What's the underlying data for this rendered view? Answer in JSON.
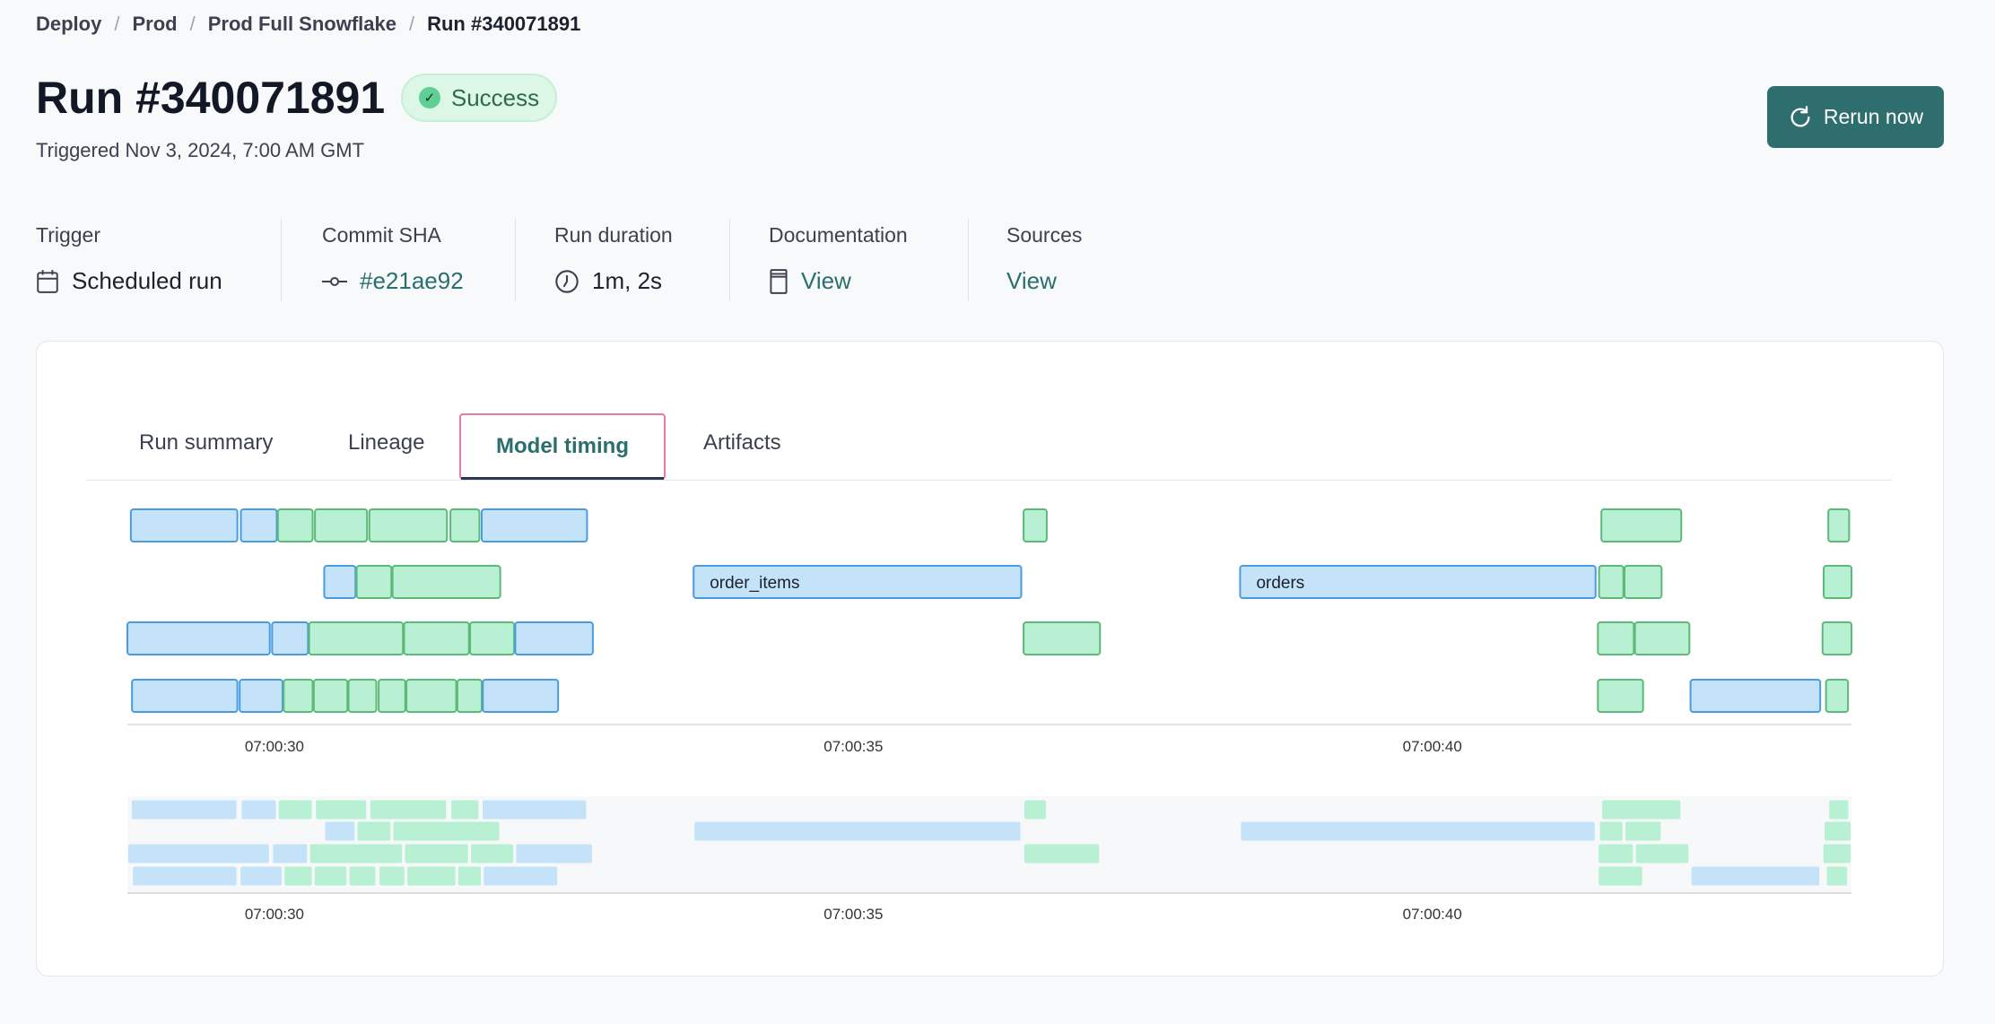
{
  "breadcrumb": [
    "Deploy",
    "Prod",
    "Prod Full Snowflake",
    "Run #340071891"
  ],
  "header": {
    "title": "Run #340071891",
    "status": "Success",
    "triggered": "Triggered Nov 3, 2024, 7:00 AM GMT",
    "rerun_label": "Rerun now"
  },
  "meta": [
    {
      "label": "Trigger",
      "value": "Scheduled run",
      "icon": "calendar-icon"
    },
    {
      "label": "Commit SHA",
      "value": "#e21ae92",
      "icon": "commit-icon"
    },
    {
      "label": "Run duration",
      "value": "1m, 2s",
      "icon": "clock-icon"
    },
    {
      "label": "Documentation",
      "value": "View",
      "icon": "book-icon"
    },
    {
      "label": "Sources",
      "value": "View"
    }
  ],
  "tabs": [
    "Run summary",
    "Lineage",
    "Model timing",
    "Artifacts"
  ],
  "active_tab": "Model timing",
  "colors": {
    "accent": "#2e6e6e",
    "blue_fill": "#c4e3f8",
    "blue_stroke": "#4a9be0",
    "green_fill": "#b7f0d2",
    "green_stroke": "#5cb978"
  },
  "chart_data": {
    "type": "gantt",
    "x_range": [
      "07:00:28.73",
      "07:00:43.62"
    ],
    "ticks": [
      "07:00:30",
      "07:00:35",
      "07:00:40"
    ],
    "rows": [
      [
        [
          "07:00:28.76",
          "07:00:29.68",
          "blue"
        ],
        [
          "07:00:29.71",
          "07:00:30.02",
          "blue"
        ],
        [
          "07:00:30.03",
          "07:00:30.33",
          "green"
        ],
        [
          "07:00:30.35",
          "07:00:30.80",
          "green"
        ],
        [
          "07:00:30.82",
          "07:00:31.49",
          "green"
        ],
        [
          "07:00:31.52",
          "07:00:31.77",
          "green"
        ],
        [
          "07:00:31.79",
          "07:00:32.70",
          "blue"
        ],
        [
          "07:00:36.47",
          "07:00:36.67",
          "green"
        ],
        [
          "07:00:41.46",
          "07:00:42.15",
          "green"
        ],
        [
          "07:00:43.42",
          "07:00:43.60",
          "green"
        ]
      ],
      [
        [
          "07:00:30.43",
          "07:00:30.70",
          "blue"
        ],
        [
          "07:00:30.71",
          "07:00:31.01",
          "green"
        ],
        [
          "07:00:31.02",
          "07:00:31.95",
          "green"
        ],
        [
          "07:00:33.62",
          "07:00:36.45",
          "blue",
          "order_items"
        ],
        [
          "07:00:38.34",
          "07:00:41.41",
          "blue",
          "orders"
        ],
        [
          "07:00:41.44",
          "07:00:41.65",
          "green"
        ],
        [
          "07:00:41.66",
          "07:00:41.98",
          "green"
        ],
        [
          "07:00:43.38",
          "07:00:43.62",
          "green"
        ]
      ],
      [
        [
          "07:00:28.73",
          "07:00:29.96",
          "blue"
        ],
        [
          "07:00:29.98",
          "07:00:30.29",
          "blue"
        ],
        [
          "07:00:30.30",
          "07:00:31.11",
          "green"
        ],
        [
          "07:00:31.12",
          "07:00:31.68",
          "green"
        ],
        [
          "07:00:31.69",
          "07:00:32.07",
          "green"
        ],
        [
          "07:00:32.08",
          "07:00:32.75",
          "blue"
        ],
        [
          "07:00:36.47",
          "07:00:37.13",
          "green"
        ],
        [
          "07:00:41.43",
          "07:00:41.74",
          "green"
        ],
        [
          "07:00:41.75",
          "07:00:42.22",
          "green"
        ],
        [
          "07:00:43.37",
          "07:00:43.62",
          "green"
        ]
      ],
      [
        [
          "07:00:28.77",
          "07:00:29.68",
          "blue"
        ],
        [
          "07:00:29.70",
          "07:00:30.07",
          "blue"
        ],
        [
          "07:00:30.08",
          "07:00:30.33",
          "green"
        ],
        [
          "07:00:30.34",
          "07:00:30.63",
          "green"
        ],
        [
          "07:00:30.64",
          "07:00:30.88",
          "green"
        ],
        [
          "07:00:30.90",
          "07:00:31.13",
          "green"
        ],
        [
          "07:00:31.14",
          "07:00:31.57",
          "green"
        ],
        [
          "07:00:31.58",
          "07:00:31.79",
          "green"
        ],
        [
          "07:00:31.80",
          "07:00:32.45",
          "blue"
        ],
        [
          "07:00:41.43",
          "07:00:41.82",
          "green"
        ],
        [
          "07:00:42.23",
          "07:00:43.35",
          "blue"
        ],
        [
          "07:00:43.40",
          "07:00:43.59",
          "green"
        ]
      ]
    ]
  }
}
